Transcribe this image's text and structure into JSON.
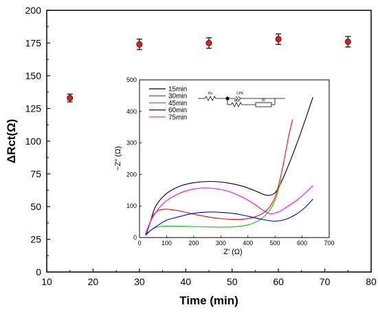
{
  "chart_data": [
    {
      "type": "scatter",
      "xlabel": "Time (min)",
      "ylabel": "ΔRct(Ω)",
      "xlim": [
        10,
        80
      ],
      "ylim": [
        0,
        200
      ],
      "xticks": [
        "10",
        "20",
        "30",
        "40",
        "50",
        "60",
        "70",
        "80"
      ],
      "yticks": [
        "0",
        "25",
        "50",
        "75",
        "100",
        "125",
        "150",
        "175",
        "200"
      ],
      "points": [
        {
          "x": 15,
          "y": 133,
          "err": 3
        },
        {
          "x": 30,
          "y": 174,
          "err": 4
        },
        {
          "x": 45,
          "y": 175,
          "err": 4
        },
        {
          "x": 60,
          "y": 178,
          "err": 4
        },
        {
          "x": 75,
          "y": 176,
          "err": 4
        }
      ],
      "marker_color": "#e41a1c"
    },
    {
      "type": "line",
      "xlabel": "Z′ (Ω)",
      "ylabel": "−Z″ (Ω)",
      "xlim": [
        0,
        700
      ],
      "ylim": [
        0,
        500
      ],
      "xticks": [
        "0",
        "100",
        "200",
        "300",
        "400",
        "500",
        "600",
        "700"
      ],
      "yticks": [
        "0",
        "100",
        "200",
        "300",
        "400",
        "500"
      ],
      "legend_position": "top-left",
      "series": [
        {
          "name": "15min",
          "color": "#000000",
          "points": [
            [
              25,
              10
            ],
            [
              40,
              50
            ],
            [
              60,
              100
            ],
            [
              100,
              140
            ],
            [
              150,
              163
            ],
            [
              200,
              174
            ],
            [
              260,
              178
            ],
            [
              320,
              174
            ],
            [
              380,
              163
            ],
            [
              430,
              147
            ],
            [
              460,
              136
            ],
            [
              480,
              134
            ],
            [
              500,
              142
            ],
            [
              520,
              170
            ],
            [
              550,
              230
            ],
            [
              590,
              320
            ],
            [
              640,
              445
            ]
          ]
        },
        {
          "name": "30min",
          "color": "#ff0000",
          "points": [
            [
              22,
              10
            ],
            [
              35,
              40
            ],
            [
              50,
              70
            ],
            [
              70,
              86
            ],
            [
              100,
              90
            ],
            [
              150,
              84
            ],
            [
              200,
              74
            ],
            [
              250,
              66
            ],
            [
              300,
              60
            ],
            [
              340,
              58
            ],
            [
              380,
              58
            ],
            [
              420,
              64
            ],
            [
              460,
              80
            ],
            [
              490,
              110
            ],
            [
              510,
              155
            ],
            [
              530,
              230
            ],
            [
              550,
              320
            ],
            [
              565,
              375
            ]
          ]
        },
        {
          "name": "45min",
          "color": "#00cc00",
          "points": [
            [
              25,
              8
            ],
            [
              40,
              22
            ],
            [
              60,
              32
            ],
            [
              90,
              36
            ],
            [
              150,
              36
            ],
            [
              200,
              35
            ],
            [
              250,
              34
            ],
            [
              300,
              33
            ],
            [
              350,
              34
            ],
            [
              400,
              40
            ],
            [
              440,
              54
            ],
            [
              470,
              76
            ],
            [
              490,
              100
            ],
            [
              505,
              130
            ],
            [
              515,
              160
            ],
            [
              525,
              185
            ]
          ]
        },
        {
          "name": "60min",
          "color": "#0000ff",
          "points": [
            [
              22,
              8
            ],
            [
              40,
              22
            ],
            [
              70,
              40
            ],
            [
              100,
              55
            ],
            [
              150,
              67
            ],
            [
              200,
              77
            ],
            [
              250,
              81
            ],
            [
              300,
              80
            ],
            [
              350,
              76
            ],
            [
              400,
              68
            ],
            [
              450,
              58
            ],
            [
              500,
              52
            ],
            [
              540,
              58
            ],
            [
              580,
              75
            ],
            [
              610,
              95
            ],
            [
              640,
              122
            ]
          ]
        },
        {
          "name": "75min",
          "color": "#ff00ff",
          "points": [
            [
              25,
              15
            ],
            [
              40,
              50
            ],
            [
              60,
              80
            ],
            [
              90,
              110
            ],
            [
              130,
              133
            ],
            [
              180,
              150
            ],
            [
              230,
              157
            ],
            [
              280,
              155
            ],
            [
              330,
              146
            ],
            [
              380,
              128
            ],
            [
              420,
              108
            ],
            [
              450,
              90
            ],
            [
              480,
              76
            ],
            [
              510,
              80
            ],
            [
              540,
              95
            ],
            [
              580,
              118
            ],
            [
              610,
              140
            ],
            [
              640,
              165
            ]
          ]
        }
      ]
    }
  ],
  "circuit": {
    "labels": [
      "Rs",
      "CPE",
      "Rct",
      "W"
    ]
  }
}
